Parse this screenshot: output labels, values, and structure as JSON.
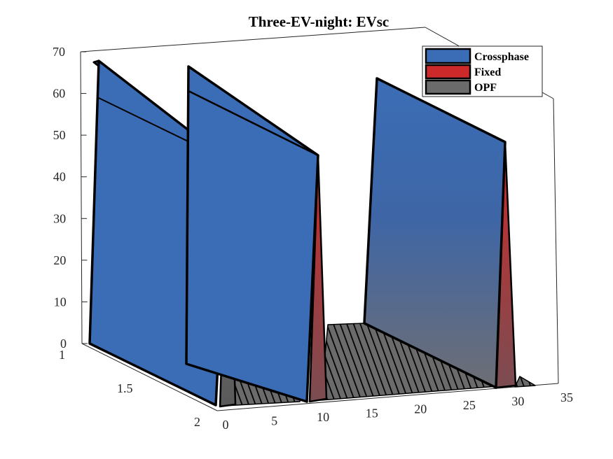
{
  "chart_data": {
    "type": "surface3d",
    "title": "Three-EV-night: EVsc",
    "xlabel": "",
    "ylabel": "",
    "zlabel": "",
    "x_ticks": [
      0,
      5,
      10,
      15,
      20,
      25,
      30,
      35
    ],
    "y_ticks": [
      1,
      1.5,
      2
    ],
    "z_ticks": [
      0,
      10,
      20,
      30,
      40,
      50,
      60,
      70
    ],
    "xlim": [
      0,
      35
    ],
    "ylim": [
      1,
      2
    ],
    "zlim": [
      0,
      70
    ],
    "legend": {
      "position": "top-right",
      "entries": [
        "Crossphase",
        "Fixed",
        "OPF"
      ]
    },
    "colors": {
      "Crossphase": "#3b6db6",
      "Fixed": "#cc2a2a",
      "OPF": "#6b6b6b"
    },
    "series": [
      {
        "name": "Crossphase",
        "x": [
          0,
          8,
          9,
          17,
          18,
          22,
          23,
          31,
          32,
          33
        ],
        "y_at_1": [
          0,
          70,
          0,
          70,
          0,
          0,
          0,
          70,
          0,
          0
        ],
        "y_at_2": [
          0,
          53,
          0,
          53,
          0,
          0,
          0,
          53,
          0,
          0
        ]
      },
      {
        "name": "Fixed",
        "x": [
          0,
          8,
          9,
          17,
          18,
          22,
          23,
          31,
          32,
          33
        ],
        "y_at_1": [
          0,
          60,
          0,
          61,
          0,
          0,
          0,
          0,
          0,
          0
        ],
        "y_at_2": [
          0,
          45,
          0,
          46,
          0,
          0,
          0,
          0,
          0,
          0
        ]
      },
      {
        "name": "OPF",
        "x": [
          0,
          8,
          9,
          17,
          18,
          22,
          23,
          31,
          32,
          33
        ],
        "y_at_1": [
          0,
          0,
          0,
          0,
          0,
          0,
          0,
          0,
          0,
          0
        ],
        "y_at_2": [
          0,
          0,
          0,
          0,
          0,
          0,
          0,
          0,
          0,
          0
        ]
      }
    ]
  }
}
